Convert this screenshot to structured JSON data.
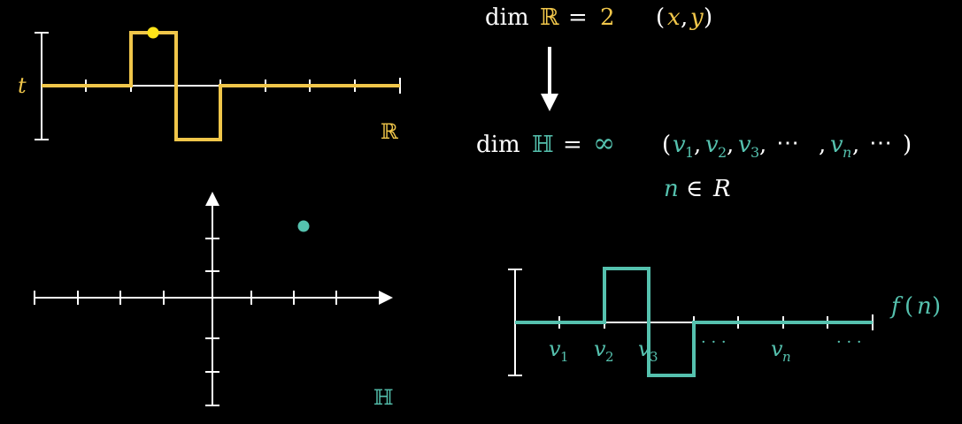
{
  "colors": {
    "yellow": "#f0c64a",
    "bright_yellow": "#ffe419",
    "teal": "#55c1ae",
    "white": "#ffffff",
    "background": "#000000"
  },
  "top_plot": {
    "label_t": "t",
    "label_R": "ℝ"
  },
  "left_plot": {
    "label_H": "ℍ"
  },
  "eq1": {
    "dim": "dim",
    "R": "ℝ",
    "eq": "=",
    "val": "2",
    "tuple_open": "(",
    "x": "x",
    "comma": ",",
    "y": "y",
    "tuple_close": ")"
  },
  "eq2": {
    "dim": "dim",
    "H": "ℍ",
    "eq": "=",
    "val": "∞",
    "tuple_open": "(",
    "tuple_close": ")",
    "v": "v",
    "sub1": "1",
    "sub2": "2",
    "sub3": "3",
    "subn": "n",
    "sep": ",",
    "dots": "⋯"
  },
  "eq3": {
    "n": "n",
    "in": "∈",
    "R": "R"
  },
  "bottom_plot": {
    "f": "f",
    "paren_open": "(",
    "n": "n",
    "paren_close": ")",
    "v": "v",
    "sub1": "1",
    "sub2": "2",
    "sub3": "3",
    "subn": "n",
    "dots": "· · ·"
  }
}
